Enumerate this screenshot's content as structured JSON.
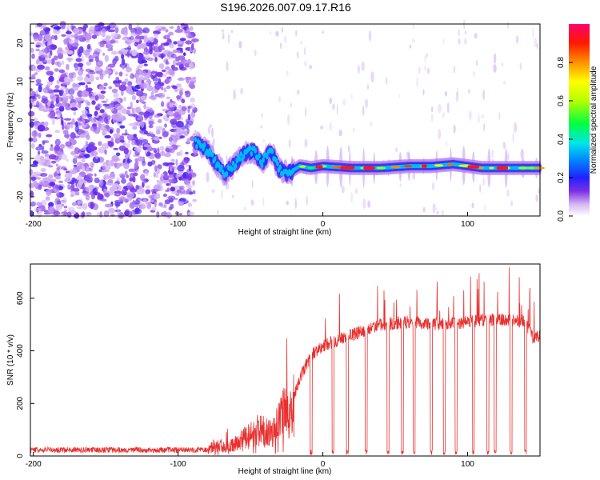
{
  "title": "S196.2026.007.09.17.R16",
  "chart_data": [
    {
      "type": "heatmap",
      "xlabel": "Height of straight line (km)",
      "ylabel": "Frequency (Hz)",
      "xlim": [
        -202,
        150
      ],
      "ylim": [
        -25,
        25
      ],
      "x_ticks": [
        -200,
        -100,
        0,
        100
      ],
      "y_ticks": [
        20,
        10,
        0,
        -10,
        -20
      ],
      "noise_region_x": [
        -202,
        -88
      ],
      "signal_onset_x": -88,
      "signal_track": [
        {
          "x": -86,
          "f": -6
        },
        {
          "x": -80,
          "f": -8
        },
        {
          "x": -74,
          "f": -11
        },
        {
          "x": -68,
          "f": -14
        },
        {
          "x": -62,
          "f": -12
        },
        {
          "x": -55,
          "f": -9
        },
        {
          "x": -48,
          "f": -8
        },
        {
          "x": -42,
          "f": -11
        },
        {
          "x": -36,
          "f": -8
        },
        {
          "x": -30,
          "f": -13
        },
        {
          "x": -24,
          "f": -14
        },
        {
          "x": -16,
          "f": -12
        },
        {
          "x": -8,
          "f": -12.5
        },
        {
          "x": 0,
          "f": -12
        },
        {
          "x": 20,
          "f": -12.5
        },
        {
          "x": 40,
          "f": -12.5
        },
        {
          "x": 60,
          "f": -12
        },
        {
          "x": 75,
          "f": -12
        },
        {
          "x": 90,
          "f": -11.5
        },
        {
          "x": 110,
          "f": -12.5
        },
        {
          "x": 130,
          "f": -12.5
        },
        {
          "x": 150,
          "f": -12.5
        }
      ],
      "colorbar": {
        "label": "Normalized spectral amplitude",
        "ticks": [
          0.0,
          0.2,
          0.4,
          0.6,
          0.8
        ],
        "range": [
          0,
          1
        ]
      }
    },
    {
      "type": "line",
      "xlabel": "Height of straight line (km)",
      "ylabel": "SNR (10 * v/v)",
      "xlim": [
        -202,
        150
      ],
      "ylim": [
        0,
        730
      ],
      "x_ticks": [
        -200,
        -100,
        0,
        100
      ],
      "y_ticks": [
        0,
        200,
        400,
        600
      ],
      "series": [
        {
          "name": "SNR",
          "color": "#e8302f",
          "envelope": [
            {
              "x": -202,
              "y": 20
            },
            {
              "x": -80,
              "y": 20
            },
            {
              "x": -75,
              "y": 45
            },
            {
              "x": -65,
              "y": 40
            },
            {
              "x": -55,
              "y": 70
            },
            {
              "x": -45,
              "y": 110
            },
            {
              "x": -35,
              "y": 90
            },
            {
              "x": -30,
              "y": 150
            },
            {
              "x": -25,
              "y": 200
            },
            {
              "x": -20,
              "y": 230
            },
            {
              "x": -15,
              "y": 310
            },
            {
              "x": -10,
              "y": 360
            },
            {
              "x": -5,
              "y": 400
            },
            {
              "x": 0,
              "y": 420
            },
            {
              "x": 10,
              "y": 440
            },
            {
              "x": 20,
              "y": 460
            },
            {
              "x": 30,
              "y": 480
            },
            {
              "x": 40,
              "y": 500
            },
            {
              "x": 60,
              "y": 510
            },
            {
              "x": 80,
              "y": 500
            },
            {
              "x": 100,
              "y": 510
            },
            {
              "x": 120,
              "y": 520
            },
            {
              "x": 140,
              "y": 510
            },
            {
              "x": 145,
              "y": 450
            },
            {
              "x": 150,
              "y": 460
            }
          ],
          "dropout_x": [
            -8,
            7,
            17,
            30,
            45,
            55,
            63,
            75,
            84,
            92,
            104,
            114,
            119,
            130,
            140
          ]
        }
      ]
    }
  ],
  "colors": {
    "line": "#e8302f",
    "noise_purple": "#7a2be0",
    "noise_light": "#d9c2f5"
  }
}
